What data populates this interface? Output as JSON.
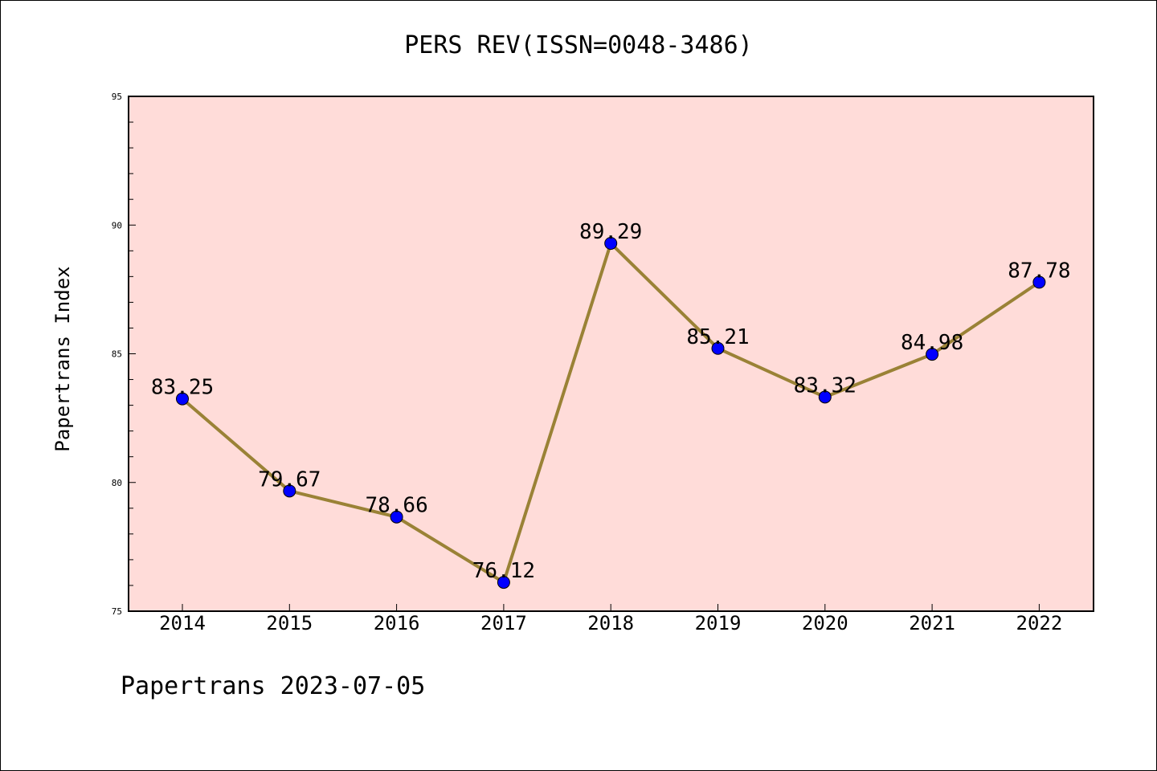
{
  "chart_data": {
    "type": "line",
    "title": "PERS REV(ISSN=0048-3486)",
    "ylabel": "Papertrans Index",
    "xlabel": "",
    "footer": "Papertrans 2023-07-05",
    "categories": [
      "2014",
      "2015",
      "2016",
      "2017",
      "2018",
      "2019",
      "2020",
      "2021",
      "2022"
    ],
    "values": [
      83.25,
      79.67,
      78.66,
      76.12,
      89.29,
      85.21,
      83.32,
      84.98,
      87.78
    ],
    "value_labels": [
      "83.25",
      "79.67",
      "78.66",
      "76.12",
      "89.29",
      "85.21",
      "83.32",
      "84.98",
      "87.78"
    ],
    "ylim": [
      75,
      95
    ],
    "yticks": [
      75,
      80,
      85,
      90,
      95
    ],
    "ytick_labels": [
      "75",
      "80",
      "85",
      "90",
      "95"
    ],
    "grid": false,
    "legend": "none",
    "colors": {
      "plot_background": "#ffdcd9",
      "line": "#9a8236",
      "marker": "#0000ff",
      "marker_edge": "#000000",
      "axis": "#000000"
    }
  }
}
